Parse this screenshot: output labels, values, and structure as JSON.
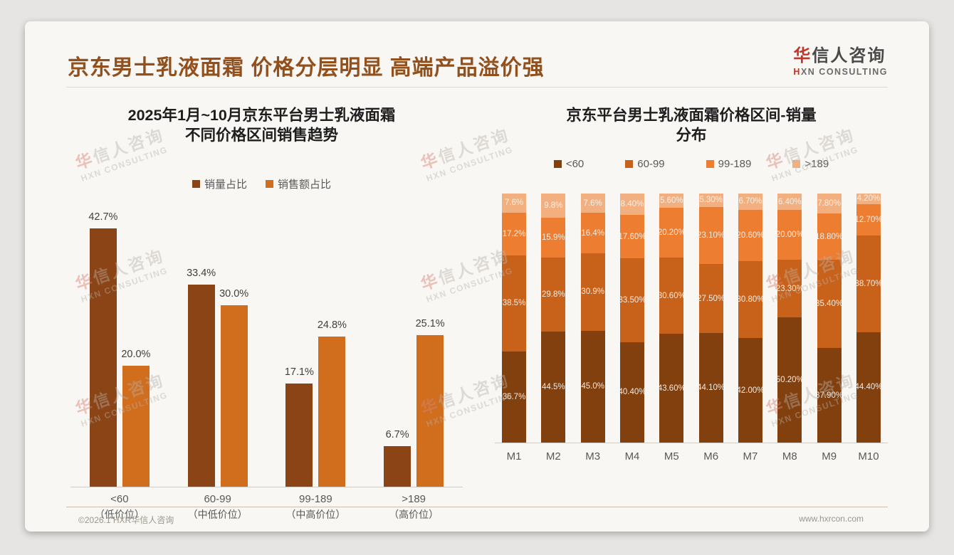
{
  "page": {
    "title": "京东男士乳液面霜 价格分层明显 高端产品溢价强",
    "logo": {
      "name_highlight": "华",
      "name_rest": "信人咨询",
      "sub_highlight": "H",
      "sub_rest": "XN CONSULTING"
    },
    "watermark": {
      "first": "华",
      "rest": "信人咨询",
      "line2": "HXN CONSULTING"
    },
    "footer": {
      "copyright": "©2026.1 HXR华信人咨询",
      "website": "www.hxrcon.com"
    }
  },
  "colors": {
    "title_brown": "#92501D",
    "logo_red": "#C2352B",
    "axis_line": "#CFCBC5",
    "value_label": "#3F3F3F",
    "category_label": "#595959"
  },
  "chart_data": [
    {
      "type": "bar",
      "title": "2025年1月~10月京东平台男士乳液面霜不同价格区间销售趋势",
      "title_line1": "2025年1月~10月京东平台男士乳液面霜",
      "title_line2": "不同价格区间销售趋势",
      "categories": [
        "<60",
        "60-99",
        "99-189",
        ">189"
      ],
      "category_sublabels": [
        "（低价位）",
        "（中低价位）",
        "（中高价位）",
        "（高价位）"
      ],
      "series": [
        {
          "name": "销量占比",
          "color": "#8A4415",
          "values": [
            42.7,
            33.4,
            17.1,
            6.7
          ],
          "labels": [
            "42.7%",
            "33.4%",
            "17.1%",
            "6.7%"
          ]
        },
        {
          "name": "销售额占比",
          "color": "#D06E1E",
          "values": [
            20.0,
            30.0,
            24.8,
            25.1
          ],
          "labels": [
            "20.0%",
            "30.0%",
            "24.8%",
            "25.1%"
          ]
        }
      ],
      "ylabel": "",
      "xlabel": "",
      "ylim": [
        0,
        45
      ],
      "grid": false,
      "legend_position": "top"
    },
    {
      "type": "bar",
      "stacked": true,
      "percent_stacked": true,
      "title": "京东平台男士乳液面霜价格区间-销量分布",
      "title_line1": "京东平台男士乳液面霜价格区间-销量",
      "title_line2": "分布",
      "categories": [
        "M1",
        "M2",
        "M3",
        "M4",
        "M5",
        "M6",
        "M7",
        "M8",
        "M9",
        "M10"
      ],
      "series": [
        {
          "name": "<60",
          "color": "#82400F",
          "values": [
            36.7,
            44.5,
            45.0,
            40.4,
            43.6,
            44.1,
            42.0,
            50.2,
            37.9,
            44.4
          ],
          "labels": [
            "36.7%",
            "44.5%",
            "45.0%",
            "40.40%",
            "43.60%",
            "44.10%",
            "42.00%",
            "50.20%",
            "37.90%",
            "44.40%"
          ]
        },
        {
          "name": "60-99",
          "color": "#C8621B",
          "values": [
            38.5,
            29.8,
            30.9,
            33.5,
            30.6,
            27.5,
            30.8,
            23.3,
            35.4,
            38.7
          ],
          "labels": [
            "38.5%",
            "29.8%",
            "30.9%",
            "33.50%",
            "30.60%",
            "27.50%",
            "30.80%",
            "23.30%",
            "35.40%",
            "38.70%"
          ]
        },
        {
          "name": "99-189",
          "color": "#ED7D31",
          "values": [
            17.2,
            15.9,
            16.4,
            17.6,
            20.2,
            23.1,
            20.6,
            20.0,
            18.8,
            12.7
          ],
          "labels": [
            "17.2%",
            "15.9%",
            "16.4%",
            "17.60%",
            "20.20%",
            "23.10%",
            "20.60%",
            "20.00%",
            "18.80%",
            "12.70%"
          ]
        },
        {
          "name": ">189",
          "color": "#F2B080",
          "values": [
            7.6,
            9.8,
            7.6,
            8.4,
            5.6,
            5.3,
            6.7,
            6.4,
            7.8,
            4.2
          ],
          "labels": [
            "7.6%",
            "9.8%",
            "7.6%",
            "8.40%",
            "5.60%",
            "5.30%",
            "6.70%",
            "6.40%",
            "7.80%",
            "4.20%"
          ]
        }
      ],
      "ylabel": "",
      "xlabel": "",
      "ylim": [
        0,
        100
      ],
      "grid": false,
      "legend_position": "top"
    }
  ]
}
